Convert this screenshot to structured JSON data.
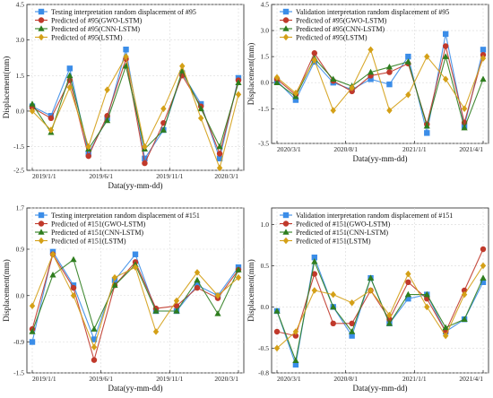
{
  "colors": {
    "series": [
      "#3b8de8",
      "#c0392b",
      "#2e7d1e",
      "#d4a017"
    ],
    "grid": "#d9d9d9",
    "axis": "#222222"
  },
  "chart_data": [
    {
      "type": "line",
      "xlabel": "Data(yy-mm-dd)",
      "ylabel": "Displacement(mm)",
      "ylim": [
        -2.5,
        4.5
      ],
      "yticks": [
        "-2.5",
        "-1.5",
        "0.0",
        "1.5",
        "3.0",
        "4.5"
      ],
      "ytick_values": [
        -2.5,
        -1.5,
        0.0,
        1.5,
        3.0,
        4.5
      ],
      "xtick_labels": [
        "2019/1/1",
        "2019/6/1",
        "2019/11/1",
        "2020/3/1"
      ],
      "grid": true,
      "legend_position": "top-left",
      "markers": [
        "square",
        "circle",
        "triangle",
        "diamond"
      ],
      "series": [
        {
          "name": "Testing interpretation random displacement of #95",
          "values": [
            0.2,
            -0.2,
            1.8,
            -1.8,
            -0.3,
            2.6,
            -2.0,
            -0.8,
            1.6,
            0.3,
            -2.0,
            1.4
          ]
        },
        {
          "name": "Predicted of #95(GWO-LSTM)",
          "values": [
            0.15,
            -0.3,
            1.3,
            -1.9,
            -0.2,
            2.2,
            -2.2,
            -0.5,
            1.5,
            0.2,
            -1.8,
            1.3
          ]
        },
        {
          "name": "Predicted of #95(CNN-LSTM)",
          "values": [
            0.3,
            -0.9,
            1.5,
            -1.6,
            -0.4,
            1.9,
            -1.6,
            -0.8,
            1.7,
            0.1,
            -1.5,
            1.2
          ]
        },
        {
          "name": "Predicted of #95(LSTM)",
          "values": [
            0.0,
            -0.8,
            1.0,
            -1.5,
            0.9,
            2.3,
            -1.5,
            0.1,
            1.9,
            -0.3,
            -2.4,
            0.7
          ]
        }
      ]
    },
    {
      "type": "line",
      "xlabel": "Data(yy-mm-dd)",
      "ylabel": "Displacement(mm)",
      "ylim": [
        -3.5,
        4.5
      ],
      "yticks": [
        "-3.5",
        "-1.5",
        "0.0",
        "1.5",
        "3.0",
        "4.5"
      ],
      "ytick_values": [
        -3.5,
        -1.5,
        0.0,
        1.5,
        3.0,
        4.5
      ],
      "xtick_labels": [
        "2020/3/1",
        "2020/8/1",
        "2021/1/1",
        "2021/4/1"
      ],
      "grid": true,
      "legend_position": "top-left",
      "markers": [
        "square",
        "circle",
        "triangle",
        "diamond"
      ],
      "series": [
        {
          "name": "Validation interpretation random displacement of #95",
          "values": [
            0.1,
            -1.0,
            1.2,
            0.0,
            -0.4,
            0.2,
            -0.1,
            1.5,
            -2.9,
            2.8,
            -2.5,
            1.9
          ]
        },
        {
          "name": "Predicted of #95(GWO-LSTM)",
          "values": [
            0.2,
            -0.7,
            1.7,
            0.1,
            -0.5,
            0.4,
            0.6,
            1.1,
            -2.4,
            2.1,
            -2.3,
            1.6
          ]
        },
        {
          "name": "Predicted of #95(CNN-LSTM)",
          "values": [
            0.0,
            -0.8,
            1.4,
            0.2,
            -0.2,
            0.6,
            0.9,
            1.2,
            -2.5,
            1.5,
            -2.6,
            0.2
          ]
        },
        {
          "name": "Predicted of #95(LSTM)",
          "values": [
            0.3,
            -0.6,
            1.3,
            -1.6,
            -0.3,
            1.9,
            -1.6,
            -0.7,
            1.5,
            0.2,
            -1.5,
            1.4
          ]
        }
      ]
    },
    {
      "type": "line",
      "xlabel": "Data(yy-mm-dd)",
      "ylabel": "Displacement(mm)",
      "ylim": [
        -1.5,
        1.7
      ],
      "yticks": [
        "-1.5",
        "-0.9",
        "0.0",
        "0.9",
        "1.7"
      ],
      "ytick_values": [
        -1.5,
        -0.9,
        0.0,
        0.9,
        1.7
      ],
      "xtick_labels": [
        "2019/1/1",
        "2019/6/1",
        "2019/11/1",
        "2020/3/1"
      ],
      "grid": true,
      "legend_position": "top-left",
      "markers": [
        "square",
        "circle",
        "triangle",
        "diamond"
      ],
      "series": [
        {
          "name": "Testing interpretation random displacement of #151",
          "values": [
            -0.9,
            0.85,
            0.2,
            -0.85,
            0.3,
            0.8,
            -0.3,
            -0.3,
            0.2,
            0.0,
            0.55
          ]
        },
        {
          "name": "Predicted of #151(GWO-LSTM)",
          "values": [
            -0.65,
            0.8,
            0.15,
            -1.25,
            0.2,
            0.65,
            -0.25,
            -0.2,
            0.15,
            -0.05,
            0.5
          ]
        },
        {
          "name": "Predicted of #151(CNN-LSTM)",
          "values": [
            -0.7,
            0.4,
            0.7,
            -0.65,
            0.2,
            0.6,
            -0.3,
            -0.3,
            0.3,
            -0.35,
            0.5
          ]
        },
        {
          "name": "Predicted of #151(LSTM)",
          "values": [
            -0.2,
            0.8,
            0.0,
            -1.0,
            0.35,
            0.55,
            -0.7,
            -0.1,
            0.45,
            0.0,
            0.35
          ]
        }
      ]
    },
    {
      "type": "line",
      "xlabel": "Data(yy-mm-dd)",
      "ylabel": "Displacement(mm)",
      "ylim": [
        -0.8,
        1.2
      ],
      "yticks": [
        "-0.8",
        "-0.5",
        "0.0",
        "0.5",
        "1.0"
      ],
      "ytick_values": [
        -0.8,
        -0.5,
        0.0,
        0.5,
        1.0
      ],
      "xtick_labels": [
        "2020/3/1",
        "2020/8/1",
        "2021/1/1",
        "2021/4/1"
      ],
      "grid": true,
      "legend_position": "top-left",
      "markers": [
        "square",
        "circle",
        "triangle",
        "diamond"
      ],
      "series": [
        {
          "name": "Validation interpretation random displacement of #151",
          "values": [
            -0.05,
            -0.7,
            0.6,
            0.0,
            -0.35,
            0.35,
            -0.2,
            0.1,
            0.15,
            -0.3,
            -0.15,
            0.3
          ]
        },
        {
          "name": "Predicted of #151(GWO-LSTM)",
          "values": [
            -0.3,
            -0.35,
            0.4,
            -0.2,
            -0.2,
            0.2,
            -0.15,
            0.3,
            0.1,
            -0.3,
            0.2,
            0.7
          ]
        },
        {
          "name": "Predicted of #151(CNN-LSTM)",
          "values": [
            -0.05,
            -0.65,
            0.55,
            0.0,
            -0.3,
            0.35,
            -0.2,
            0.15,
            0.15,
            -0.25,
            -0.15,
            0.35
          ]
        },
        {
          "name": "Predicted of #151(LSTM)",
          "values": [
            -0.5,
            -0.3,
            0.2,
            0.15,
            0.05,
            0.2,
            -0.1,
            0.4,
            0.0,
            -0.35,
            0.15,
            0.5
          ]
        }
      ]
    }
  ]
}
